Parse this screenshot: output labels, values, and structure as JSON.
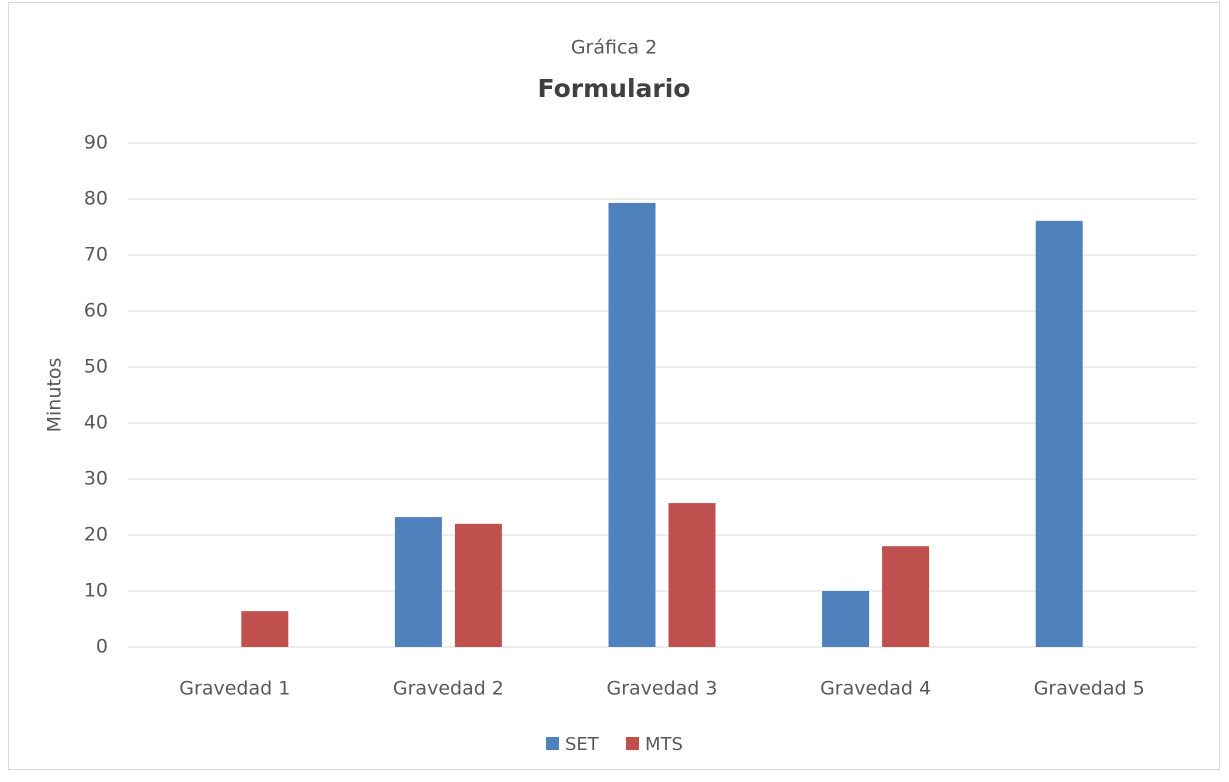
{
  "chart_data": {
    "type": "bar",
    "subtitle": "Gráfica 2",
    "title": "Formulario",
    "y_label": "Minutos",
    "categories": [
      "Gravedad 1",
      "Gravedad 2",
      "Gravedad 3",
      "Gravedad 4",
      "Gravedad 5"
    ],
    "series": [
      {
        "name": "SET",
        "color": "#4f81bd",
        "values": [
          0,
          23.2,
          79.3,
          10,
          76.1
        ]
      },
      {
        "name": "MTS",
        "color": "#c0504d",
        "values": [
          6.4,
          22,
          25.7,
          18,
          0
        ]
      }
    ],
    "ylim": [
      0,
      90
    ],
    "yticks": [
      0,
      10,
      20,
      30,
      40,
      50,
      60,
      70,
      80,
      90
    ],
    "grid": true,
    "legend": "bottom"
  }
}
